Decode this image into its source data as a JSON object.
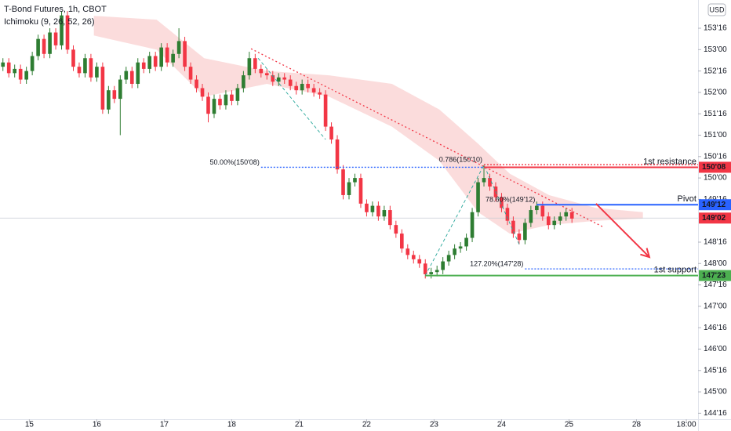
{
  "chart_data": {
    "type": "candlestick",
    "title": "T-Bond Futures, 1h, CBOT",
    "indicator": "Ichimoku (9, 26, 52, 26)",
    "currency": "USD",
    "up_color": "#2e7d32",
    "down_color": "#f23645",
    "xlim": [
      -0.5,
      118.5
    ],
    "ylim": [
      144.36,
      154.16
    ],
    "xticks": [
      {
        "value": 4.5,
        "label": "15"
      },
      {
        "value": 16,
        "label": "16"
      },
      {
        "value": 27.5,
        "label": "17"
      },
      {
        "value": 39,
        "label": "18"
      },
      {
        "value": 50.5,
        "label": "21"
      },
      {
        "value": 62,
        "label": "22"
      },
      {
        "value": 73.5,
        "label": "23"
      },
      {
        "value": 85,
        "label": "24"
      },
      {
        "value": 96.5,
        "label": "25"
      },
      {
        "value": 108,
        "label": "28"
      },
      {
        "value": 116.5,
        "label": "18:00"
      }
    ],
    "yticks": [
      {
        "value": 153.5,
        "label": "153'16"
      },
      {
        "value": 153,
        "label": "153'00"
      },
      {
        "value": 152.5,
        "label": "152'16"
      },
      {
        "value": 152,
        "label": "152'00"
      },
      {
        "value": 151.5,
        "label": "151'16"
      },
      {
        "value": 151,
        "label": "151'00"
      },
      {
        "value": 150.5,
        "label": "150'16"
      },
      {
        "value": 150,
        "label": "150'00"
      },
      {
        "value": 149.5,
        "label": "149'16"
      },
      {
        "value": 148.5,
        "label": "148'16"
      },
      {
        "value": 148,
        "label": "148'00"
      },
      {
        "value": 147.5,
        "label": "147'16"
      },
      {
        "value": 147,
        "label": "147'00"
      },
      {
        "value": 146.5,
        "label": "146'16"
      },
      {
        "value": 146,
        "label": "146'00"
      },
      {
        "value": 145.5,
        "label": "145'16"
      },
      {
        "value": 145,
        "label": "145'00"
      },
      {
        "value": 144.5,
        "label": "144'16"
      }
    ],
    "ohlc": [
      [
        152.6,
        152.8,
        152.5,
        152.7
      ],
      [
        152.7,
        152.8,
        152.35,
        152.45
      ],
      [
        152.45,
        152.65,
        152.35,
        152.55
      ],
      [
        152.55,
        152.65,
        152.2,
        152.3
      ],
      [
        152.3,
        152.6,
        152.2,
        152.5
      ],
      [
        152.5,
        152.95,
        152.4,
        152.85
      ],
      [
        152.85,
        153.35,
        152.75,
        153.25
      ],
      [
        153.25,
        153.35,
        152.8,
        152.9
      ],
      [
        152.9,
        153.5,
        152.8,
        153.4
      ],
      [
        153.4,
        153.5,
        153.0,
        153.1
      ],
      [
        153.1,
        153.9,
        153.0,
        153.8
      ],
      [
        153.8,
        153.9,
        152.9,
        153.0
      ],
      [
        153.0,
        153.1,
        152.5,
        152.6
      ],
      [
        152.6,
        152.7,
        152.35,
        152.45
      ],
      [
        152.45,
        152.9,
        152.35,
        152.8
      ],
      [
        152.8,
        152.9,
        152.25,
        152.35
      ],
      [
        152.35,
        152.7,
        152.25,
        152.6
      ],
      [
        152.6,
        152.7,
        151.5,
        151.6
      ],
      [
        151.6,
        152.15,
        151.5,
        152.05
      ],
      [
        152.05,
        152.15,
        151.75,
        151.85
      ],
      [
        151.85,
        152.4,
        151.0,
        152.3
      ],
      [
        152.3,
        152.6,
        152.2,
        152.5
      ],
      [
        152.5,
        152.6,
        152.1,
        152.2
      ],
      [
        152.2,
        152.8,
        152.1,
        152.7
      ],
      [
        152.7,
        152.8,
        152.45,
        152.55
      ],
      [
        152.55,
        152.95,
        152.45,
        152.85
      ],
      [
        152.85,
        152.95,
        152.5,
        152.6
      ],
      [
        152.6,
        153.15,
        152.5,
        153.05
      ],
      [
        153.05,
        153.15,
        152.6,
        152.7
      ],
      [
        152.7,
        153.0,
        152.6,
        152.9
      ],
      [
        152.9,
        153.5,
        152.8,
        153.2
      ],
      [
        153.2,
        153.3,
        152.5,
        152.6
      ],
      [
        152.6,
        152.7,
        152.2,
        152.3
      ],
      [
        152.3,
        152.4,
        152.0,
        152.1
      ],
      [
        152.1,
        152.2,
        151.8,
        151.9
      ],
      [
        151.9,
        152.0,
        151.3,
        151.5
      ],
      [
        151.5,
        151.95,
        151.4,
        151.85
      ],
      [
        151.85,
        151.95,
        151.6,
        151.7
      ],
      [
        151.7,
        152.05,
        151.6,
        151.95
      ],
      [
        151.95,
        152.05,
        151.7,
        151.8
      ],
      [
        151.8,
        152.2,
        151.7,
        152.1
      ],
      [
        152.1,
        152.5,
        152.0,
        152.4
      ],
      [
        152.4,
        152.95,
        152.3,
        152.8
      ],
      [
        152.8,
        152.9,
        152.45,
        152.55
      ],
      [
        152.55,
        152.65,
        152.35,
        152.45
      ],
      [
        152.45,
        152.55,
        152.3,
        152.4
      ],
      [
        152.4,
        152.5,
        152.15,
        152.25
      ],
      [
        152.25,
        152.45,
        152.15,
        152.35
      ],
      [
        152.35,
        152.45,
        152.2,
        152.3
      ],
      [
        152.3,
        152.4,
        152.05,
        152.15
      ],
      [
        152.15,
        152.25,
        151.95,
        152.05
      ],
      [
        152.05,
        152.3,
        151.95,
        152.2
      ],
      [
        152.2,
        152.3,
        152.0,
        152.1
      ],
      [
        152.1,
        152.2,
        151.9,
        152.0
      ],
      [
        152.0,
        152.1,
        151.85,
        151.95
      ],
      [
        151.95,
        152.05,
        151.1,
        151.2
      ],
      [
        151.2,
        151.3,
        150.8,
        150.9
      ],
      [
        150.9,
        151.0,
        150.1,
        150.2
      ],
      [
        150.2,
        150.3,
        149.5,
        149.6
      ],
      [
        149.6,
        150.0,
        149.5,
        149.9
      ],
      [
        149.9,
        150.1,
        149.8,
        150.0
      ],
      [
        150.0,
        150.1,
        149.3,
        149.4
      ],
      [
        149.4,
        149.5,
        149.1,
        149.2
      ],
      [
        149.2,
        149.45,
        149.1,
        149.35
      ],
      [
        149.35,
        149.45,
        149.0,
        149.1
      ],
      [
        149.1,
        149.35,
        149.0,
        149.25
      ],
      [
        149.25,
        149.35,
        148.8,
        148.9
      ],
      [
        148.9,
        149.0,
        148.6,
        148.7
      ],
      [
        148.7,
        148.8,
        148.25,
        148.35
      ],
      [
        148.35,
        148.45,
        148.1,
        148.2
      ],
      [
        148.2,
        148.3,
        148.0,
        148.1
      ],
      [
        148.1,
        148.2,
        147.9,
        148.0
      ],
      [
        148.0,
        148.1,
        147.65,
        147.75
      ],
      [
        147.75,
        147.9,
        147.65,
        147.8
      ],
      [
        147.8,
        147.95,
        147.7,
        147.85
      ],
      [
        147.85,
        148.15,
        147.75,
        148.05
      ],
      [
        148.05,
        148.3,
        147.95,
        148.2
      ],
      [
        148.2,
        148.45,
        148.1,
        148.35
      ],
      [
        148.35,
        148.5,
        148.25,
        148.4
      ],
      [
        148.4,
        148.7,
        148.3,
        148.6
      ],
      [
        148.6,
        149.3,
        148.5,
        149.2
      ],
      [
        149.2,
        150.0,
        149.1,
        149.9
      ],
      [
        149.9,
        150.3,
        149.8,
        150.0
      ],
      [
        150.0,
        150.1,
        149.7,
        149.8
      ],
      [
        149.8,
        149.9,
        149.45,
        149.55
      ],
      [
        149.55,
        149.65,
        149.2,
        149.3
      ],
      [
        149.3,
        149.4,
        148.9,
        149.0
      ],
      [
        149.0,
        149.1,
        148.6,
        148.7
      ],
      [
        148.7,
        148.8,
        148.45,
        148.55
      ],
      [
        148.55,
        149.05,
        148.45,
        148.95
      ],
      [
        148.95,
        149.35,
        148.85,
        149.25
      ],
      [
        149.25,
        149.45,
        149.15,
        149.35
      ],
      [
        149.35,
        149.45,
        149.0,
        149.1
      ],
      [
        149.1,
        149.2,
        148.8,
        148.9
      ],
      [
        148.9,
        149.1,
        148.8,
        149.0
      ],
      [
        149.0,
        149.2,
        148.9,
        149.1
      ],
      [
        149.1,
        149.3,
        149.0,
        149.2
      ],
      [
        149.2,
        149.3,
        148.95,
        149.05
      ]
    ],
    "cloud": {
      "color": "#f8c4c4",
      "x": [
        15.5,
        26.2,
        34.3,
        45,
        55.6,
        66.3,
        74.4,
        81,
        86.4,
        93.1,
        101.1,
        109.1
      ],
      "upper": [
        153.79,
        153.7,
        152.8,
        152.5,
        152.4,
        152.2,
        151.6,
        150.8,
        150.1,
        149.6,
        149.3,
        149.2
      ],
      "lower": [
        153.33,
        153.0,
        151.9,
        152.2,
        151.9,
        151.2,
        150.4,
        149.2,
        148.7,
        148.9,
        149.0,
        149.05
      ]
    },
    "levels": [
      {
        "label": "1st resistance",
        "value": 150.25,
        "price_label": "150'08",
        "color": "#f23645",
        "from": 82
      },
      {
        "label": "Pivot",
        "value": 149.375,
        "price_label": "149'12",
        "color": "#2962ff",
        "from": 91
      },
      {
        "label": "1st support",
        "value": 147.71875,
        "price_label": "147'23",
        "color": "#4caf50",
        "from": 72
      }
    ],
    "last_price": {
      "value": 149.0625,
      "price_label": "149'02",
      "color": "#f23645"
    },
    "fib_lines": [
      {
        "text": "50.00%(150'08)",
        "value": 150.25,
        "from": 44,
        "to": 82,
        "color": "#2962ff"
      },
      {
        "text": "0.786(150'10)",
        "value": 150.3125,
        "from": 82,
        "to": 118.5,
        "color": "#f23645"
      },
      {
        "text": "78.60%(149'12)",
        "value": 149.375,
        "from": 91,
        "to": 98,
        "color": "#2962ff"
      },
      {
        "text": "127.20%(147'28)",
        "value": 147.875,
        "from": 89,
        "to": 118.5,
        "color": "#2962ff"
      }
    ],
    "trendlines": [
      {
        "color": "#f23645",
        "x": [
          42.3,
          102.4
        ],
        "y": [
          153.02,
          148.85
        ]
      },
      {
        "color": "#26a69a",
        "x": [
          43.5,
          55
        ],
        "y": [
          152.8,
          150.9
        ]
      },
      {
        "color": "#26a69a",
        "x": [
          72,
          82,
          88
        ],
        "y": [
          147.72,
          150.3,
          148.45
        ]
      }
    ],
    "arrow": {
      "color": "#f23645",
      "x": [
        101.1,
        110.2
      ],
      "y": [
        149.4,
        148.15
      ]
    }
  }
}
